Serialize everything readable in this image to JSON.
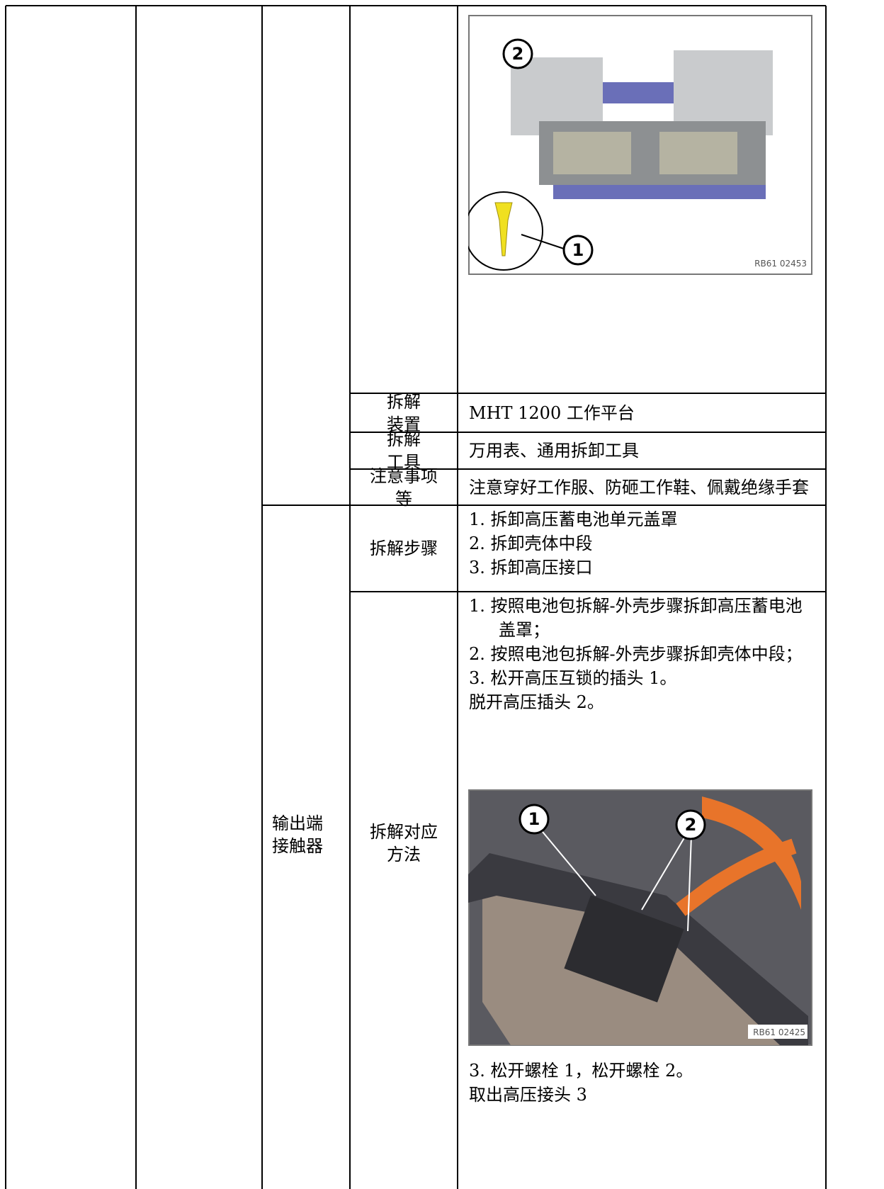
{
  "table": {
    "image_1": {
      "callouts": [
        "2",
        "1"
      ],
      "code": "RB61 02453"
    },
    "rows": [
      {
        "label": [
          "拆解",
          "装置"
        ],
        "content": "MHT 1200 工作平台"
      },
      {
        "label": [
          "拆解",
          "工具"
        ],
        "content": "万用表、通用拆卸工具"
      },
      {
        "label": [
          "注意事项",
          "等"
        ],
        "content": "注意穿好工作服、防砸工作鞋、佩戴绝缘手套"
      }
    ],
    "component": [
      "输出端",
      "接触器"
    ],
    "steps": {
      "label": "拆解步骤",
      "items": [
        "1. 拆卸高压蓄电池单元盖罩",
        "2. 拆卸壳体中段",
        "3. 拆卸高压接口"
      ]
    },
    "method": {
      "label": [
        "拆解对应",
        "方法"
      ],
      "items_before": [
        "1. 按照电池包拆解-外壳步骤拆卸高压蓄电池盖罩；",
        "2. 按照电池包拆解-外壳步骤拆卸壳体中段；",
        "3. 松开高压互锁的插头 1。"
      ],
      "note": "脱开高压插头 2。",
      "image_2": {
        "callouts": [
          "1",
          "2"
        ],
        "code": "RB61 02425"
      },
      "items_after": [
        "3. 松开螺栓 1，松开螺栓 2。"
      ],
      "final": "取出高压接头 3"
    }
  }
}
